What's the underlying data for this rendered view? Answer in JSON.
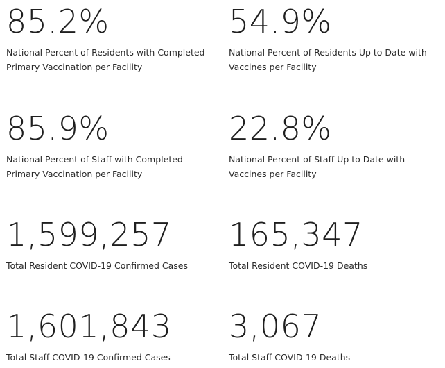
{
  "stats": [
    {
      "value": "85.2%",
      "label": "National Percent of Residents with Completed Primary Vaccination per Facility"
    },
    {
      "value": "54.9%",
      "label": "National Percent of Residents Up to Date with Vaccines per Facility"
    },
    {
      "value": "85.9%",
      "label": "National Percent of Staff with Completed Primary Vaccination per Facility"
    },
    {
      "value": "22.8%",
      "label": "National Percent of Staff Up to Date with Vaccines per Facility"
    },
    {
      "value": "1,599,257",
      "label": "Total Resident COVID-19 Confirmed Cases"
    },
    {
      "value": "165,347",
      "label": "Total Resident COVID-19 Deaths"
    },
    {
      "value": "1,601,843",
      "label": "Total Staff COVID-19 Confirmed Cases"
    },
    {
      "value": "3,067",
      "label": "Total Staff COVID-19 Deaths"
    }
  ]
}
